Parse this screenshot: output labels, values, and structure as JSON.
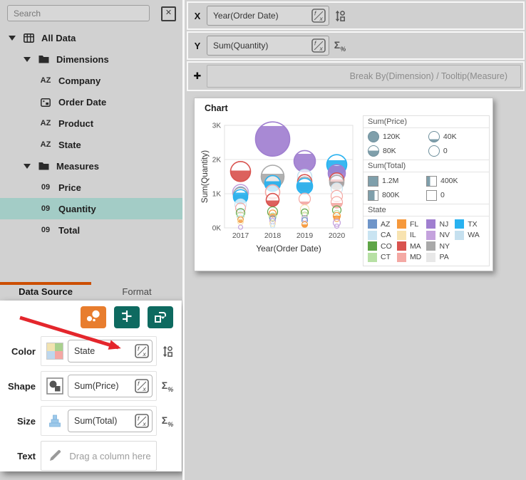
{
  "colors": {
    "accent_orange": "#e87d2e",
    "teal": "#0e6a60",
    "tab_accent": "#cc4e00",
    "selection": "#a3ccc6",
    "arrow": "#e4262c",
    "legend_fill": "#7f9fab"
  },
  "icon_glyphs": {
    "close": "✕",
    "plus": "✚",
    "az": "AZ",
    "num": "09"
  },
  "sidebar": {
    "search": {
      "placeholder": "Search"
    },
    "tree": [
      {
        "label": "All Data",
        "level": 0,
        "icon": "table",
        "caret": true,
        "bold": true
      },
      {
        "label": "Dimensions",
        "level": 1,
        "icon": "folder",
        "caret": true,
        "bold": true
      },
      {
        "label": "Company",
        "level": 2,
        "icon": "az"
      },
      {
        "label": "Order Date",
        "level": 2,
        "icon": "calendar"
      },
      {
        "label": "Product",
        "level": 2,
        "icon": "az"
      },
      {
        "label": "State",
        "level": 2,
        "icon": "az"
      },
      {
        "label": "Measures",
        "level": 1,
        "icon": "folder",
        "caret": true,
        "bold": true
      },
      {
        "label": "Price",
        "level": 2,
        "icon": "num"
      },
      {
        "label": "Quantity",
        "level": 2,
        "icon": "num",
        "selected": true
      },
      {
        "label": "Total",
        "level": 2,
        "icon": "num"
      }
    ],
    "tabs": [
      {
        "label": "Data Source",
        "active": true
      },
      {
        "label": "Format",
        "active": false
      }
    ]
  },
  "shelf": {
    "x": {
      "label": "X",
      "value": "Year(Order Date)"
    },
    "y": {
      "label": "Y",
      "value": "Sum(Quantity)"
    },
    "add": {
      "label": "✚",
      "placeholder": "Break By(Dimension) / Tooltip(Measure)"
    }
  },
  "properties": {
    "rows": [
      {
        "label": "Color",
        "value": "State"
      },
      {
        "label": "Shape",
        "value": "Sum(Price)"
      },
      {
        "label": "Size",
        "value": "Sum(Total)"
      },
      {
        "label": "Text",
        "placeholder": "Drag a column here"
      }
    ],
    "palette_swatch": [
      "#f2e3b0",
      "#a9d18e",
      "#bdd7ee",
      "#f4a7a3"
    ]
  },
  "chart_data": {
    "type": "scatter",
    "title": "Chart",
    "xlabel": "Year(Order Date)",
    "ylabel": "Sum(Quantity)",
    "x_ticks": [
      "2017",
      "2018",
      "2019",
      "2020"
    ],
    "y_ticks": [
      "0K",
      "1K",
      "2K",
      "3K"
    ],
    "ylim": [
      0,
      3000
    ],
    "encodings": {
      "color": "State",
      "shape": "Sum(Price)",
      "size": "Sum(Total)"
    },
    "legend": {
      "price": {
        "title": "Sum(Price)",
        "items": [
          {
            "label": "120K",
            "fill": 1
          },
          {
            "label": "80K",
            "fill": 0.55
          },
          {
            "label": "40K",
            "fill": 0.25
          },
          {
            "label": "0",
            "fill": 0
          }
        ]
      },
      "total": {
        "title": "Sum(Total)",
        "items": [
          {
            "label": "1.2M",
            "fill": 1
          },
          {
            "label": "800K",
            "fill": 0.65
          },
          {
            "label": "400K",
            "fill": 0.35
          },
          {
            "label": "0",
            "fill": 0
          }
        ]
      },
      "state": {
        "title": "State",
        "order": [
          "AZ",
          "CA",
          "CO",
          "CT",
          "FL",
          "IL",
          "MA",
          "MD",
          "NJ",
          "NV",
          "NY",
          "PA",
          "TX",
          "WA"
        ]
      }
    },
    "state_colors": {
      "AZ": "#6f95c9",
      "CA": "#c9e4f2",
      "CO": "#5fa547",
      "CT": "#b7e0a4",
      "FL": "#f6993c",
      "IL": "#f8e3b0",
      "MA": "#d9534f",
      "MD": "#f4a9a4",
      "NJ": "#a07fd0",
      "NV": "#c4a2dd",
      "NY": "#a9a9a9",
      "PA": "#e8e8e8",
      "TX": "#28b2f0",
      "WA": "#c5e0ef"
    },
    "bubbles": [
      {
        "year": "2017",
        "state": "MA",
        "y": 1650,
        "r": 14,
        "fill": 0.55
      },
      {
        "year": "2017",
        "state": "NV",
        "y": 1040,
        "r": 11,
        "fill": 0
      },
      {
        "year": "2017",
        "state": "AZ",
        "y": 1010,
        "r": 9,
        "fill": 0
      },
      {
        "year": "2017",
        "state": "NY",
        "y": 970,
        "r": 10,
        "fill": 0.5
      },
      {
        "year": "2017",
        "state": "TX",
        "y": 910,
        "r": 10,
        "fill": 0.8
      },
      {
        "year": "2017",
        "state": "CA",
        "y": 680,
        "r": 8,
        "fill": 0.12
      },
      {
        "year": "2017",
        "state": "MD",
        "y": 580,
        "r": 7,
        "fill": 0
      },
      {
        "year": "2017",
        "state": "CO",
        "y": 440,
        "r": 6,
        "fill": 0
      },
      {
        "year": "2017",
        "state": "CT",
        "y": 360,
        "r": 5,
        "fill": 0
      },
      {
        "year": "2017",
        "state": "WA",
        "y": 290,
        "r": 4,
        "fill": 0
      },
      {
        "year": "2017",
        "state": "FL",
        "y": 240,
        "r": 4,
        "fill": 0.5
      },
      {
        "year": "2017",
        "state": "IL",
        "y": 180,
        "r": 4,
        "fill": 0
      },
      {
        "year": "2017",
        "state": "NV",
        "y": 20,
        "r": 3,
        "fill": 0
      },
      {
        "year": "2018",
        "state": "NJ",
        "y": 2600,
        "r": 24,
        "fill": 0.88
      },
      {
        "year": "2018",
        "state": "NY",
        "y": 1500,
        "r": 16,
        "fill": 0.62
      },
      {
        "year": "2018",
        "state": "TX",
        "y": 1300,
        "r": 11,
        "fill": 0.65
      },
      {
        "year": "2018",
        "state": "MD",
        "y": 1050,
        "r": 10,
        "fill": 0.15
      },
      {
        "year": "2018",
        "state": "MA",
        "y": 820,
        "r": 9,
        "fill": 0.45
      },
      {
        "year": "2018",
        "state": "CO",
        "y": 470,
        "r": 7,
        "fill": 0
      },
      {
        "year": "2018",
        "state": "FL",
        "y": 420,
        "r": 5,
        "fill": 0.5
      },
      {
        "year": "2018",
        "state": "CT",
        "y": 330,
        "r": 5,
        "fill": 0
      },
      {
        "year": "2018",
        "state": "AZ",
        "y": 270,
        "r": 4,
        "fill": 0
      },
      {
        "year": "2018",
        "state": "NV",
        "y": 200,
        "r": 4,
        "fill": 0
      },
      {
        "year": "2018",
        "state": "IL",
        "y": 130,
        "r": 4,
        "fill": 0
      },
      {
        "year": "2018",
        "state": "WA",
        "y": 60,
        "r": 3,
        "fill": 0
      },
      {
        "year": "2019",
        "state": "NJ",
        "y": 1950,
        "r": 15,
        "fill": 0.85
      },
      {
        "year": "2019",
        "state": "CA",
        "y": 1500,
        "r": 10,
        "fill": 0.12
      },
      {
        "year": "2019",
        "state": "MA",
        "y": 1350,
        "r": 10,
        "fill": 0.5
      },
      {
        "year": "2019",
        "state": "NY",
        "y": 1280,
        "r": 10,
        "fill": 0.5
      },
      {
        "year": "2019",
        "state": "TX",
        "y": 1220,
        "r": 11,
        "fill": 0.75
      },
      {
        "year": "2019",
        "state": "MD",
        "y": 850,
        "r": 8,
        "fill": 0.25
      },
      {
        "year": "2019",
        "state": "IL",
        "y": 550,
        "r": 6,
        "fill": 0
      },
      {
        "year": "2019",
        "state": "CO",
        "y": 450,
        "r": 5,
        "fill": 0
      },
      {
        "year": "2019",
        "state": "CT",
        "y": 380,
        "r": 4,
        "fill": 0
      },
      {
        "year": "2019",
        "state": "NV",
        "y": 280,
        "r": 4,
        "fill": 0
      },
      {
        "year": "2019",
        "state": "AZ",
        "y": 220,
        "r": 4,
        "fill": 0
      },
      {
        "year": "2019",
        "state": "FL",
        "y": 100,
        "r": 4,
        "fill": 0.5
      },
      {
        "year": "2020",
        "state": "TX",
        "y": 1850,
        "r": 14,
        "fill": 0.72
      },
      {
        "year": "2020",
        "state": "NJ",
        "y": 1600,
        "r": 12,
        "fill": 0.92
      },
      {
        "year": "2020",
        "state": "MA",
        "y": 1400,
        "r": 10,
        "fill": 0.55
      },
      {
        "year": "2020",
        "state": "NY",
        "y": 1330,
        "r": 10,
        "fill": 0.55
      },
      {
        "year": "2020",
        "state": "CA",
        "y": 1150,
        "r": 8,
        "fill": 0.15
      },
      {
        "year": "2020",
        "state": "MD",
        "y": 930,
        "r": 8,
        "fill": 0.1
      },
      {
        "year": "2020",
        "state": "MD",
        "y": 750,
        "r": 8,
        "fill": 0.45
      },
      {
        "year": "2020",
        "state": "CO",
        "y": 520,
        "r": 6,
        "fill": 0
      },
      {
        "year": "2020",
        "state": "CT",
        "y": 430,
        "r": 4,
        "fill": 0
      },
      {
        "year": "2020",
        "state": "FL",
        "y": 350,
        "r": 5,
        "fill": 0.5
      },
      {
        "year": "2020",
        "state": "FL",
        "y": 270,
        "r": 4,
        "fill": 0
      },
      {
        "year": "2020",
        "state": "NV",
        "y": 150,
        "r": 5,
        "fill": 0
      },
      {
        "year": "2020",
        "state": "NV",
        "y": 50,
        "r": 3,
        "fill": 0
      }
    ]
  }
}
